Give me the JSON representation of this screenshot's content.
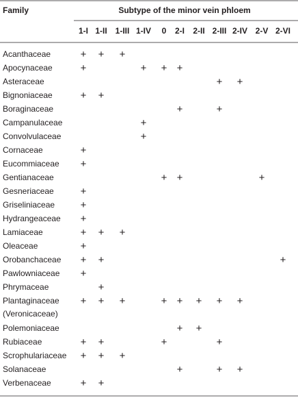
{
  "table": {
    "header": {
      "family": "Family",
      "span": "Subtype of the minor vein phloem",
      "columns": [
        "1-I",
        "1-II",
        "1-III",
        "1-IV",
        "0",
        "2-I",
        "2-II",
        "2-III",
        "2-IV",
        "2-V",
        "2-VI"
      ]
    },
    "rows": [
      {
        "family": "Acanthaceae",
        "cells": [
          "+",
          "+",
          "+",
          null,
          null,
          null,
          null,
          null,
          null,
          null,
          null
        ]
      },
      {
        "family": "Apocynaceae",
        "cells": [
          "+",
          null,
          null,
          "+",
          "+",
          "+",
          null,
          null,
          null,
          null,
          null
        ]
      },
      {
        "family": "Asteraceae",
        "cells": [
          null,
          null,
          null,
          null,
          null,
          null,
          null,
          "+",
          "+",
          null,
          null
        ]
      },
      {
        "family": "Bignoniaceae",
        "cells": [
          "+",
          "+",
          null,
          null,
          null,
          null,
          null,
          null,
          null,
          null,
          null
        ]
      },
      {
        "family": "Boraginaceae",
        "cells": [
          null,
          null,
          null,
          null,
          null,
          "+",
          null,
          "+",
          null,
          null,
          null
        ]
      },
      {
        "family": "Campanulaceae",
        "cells": [
          null,
          null,
          null,
          "+",
          null,
          null,
          null,
          null,
          null,
          null,
          null
        ]
      },
      {
        "family": "Convolvulaceae",
        "cells": [
          null,
          null,
          null,
          "+",
          null,
          null,
          null,
          null,
          null,
          null,
          null
        ]
      },
      {
        "family": "Cornaceae",
        "cells": [
          "+",
          null,
          null,
          null,
          null,
          null,
          null,
          null,
          null,
          null,
          null
        ]
      },
      {
        "family": "Eucommiaceae",
        "cells": [
          "+",
          null,
          null,
          null,
          null,
          null,
          null,
          null,
          null,
          null,
          null
        ]
      },
      {
        "family": "Gentianaceae",
        "cells": [
          null,
          null,
          null,
          null,
          "+",
          "+",
          null,
          null,
          null,
          "+",
          null
        ]
      },
      {
        "family": "Gesneriaceae",
        "cells": [
          "+",
          null,
          null,
          null,
          null,
          null,
          null,
          null,
          null,
          null,
          null
        ]
      },
      {
        "family": "Griseliniaceae",
        "cells": [
          "+",
          null,
          null,
          null,
          null,
          null,
          null,
          null,
          null,
          null,
          null
        ]
      },
      {
        "family": "Hydrangeaceae",
        "cells": [
          "+",
          null,
          null,
          null,
          null,
          null,
          null,
          null,
          null,
          null,
          null
        ]
      },
      {
        "family": "Lamiaceae",
        "cells": [
          "+",
          "+",
          "+",
          null,
          null,
          null,
          null,
          null,
          null,
          null,
          null
        ]
      },
      {
        "family": "Oleaceae",
        "cells": [
          "+",
          null,
          null,
          null,
          null,
          null,
          null,
          null,
          null,
          null,
          null
        ]
      },
      {
        "family": "Orobanchaceae",
        "cells": [
          "+",
          "+",
          null,
          null,
          null,
          null,
          null,
          null,
          null,
          null,
          "+"
        ]
      },
      {
        "family": "Pawlowniaceae",
        "cells": [
          "+",
          null,
          null,
          null,
          null,
          null,
          null,
          null,
          null,
          null,
          null
        ]
      },
      {
        "family": "Phrymaceae",
        "cells": [
          null,
          "+",
          null,
          null,
          null,
          null,
          null,
          null,
          null,
          null,
          null
        ]
      },
      {
        "family": [
          "Plantaginaceae",
          "(Veronicaceae)"
        ],
        "cells": [
          "+",
          "+",
          "+",
          null,
          "+",
          "+",
          "+",
          "+",
          "+",
          null,
          null
        ]
      },
      {
        "family": "Polemoniaceae",
        "cells": [
          null,
          null,
          null,
          null,
          null,
          "+",
          "+",
          null,
          null,
          null,
          null
        ]
      },
      {
        "family": "Rubiaceae",
        "cells": [
          "+",
          "+",
          null,
          null,
          "+",
          null,
          null,
          "+",
          null,
          null,
          null
        ]
      },
      {
        "family": "Scrophulariaceae",
        "cells": [
          "+",
          "+",
          "+",
          null,
          null,
          null,
          null,
          null,
          null,
          null,
          null
        ]
      },
      {
        "family": "Solanaceae",
        "cells": [
          null,
          null,
          null,
          null,
          null,
          "+",
          null,
          "+",
          "+",
          null,
          null
        ]
      },
      {
        "family": "Verbenaceae",
        "cells": [
          "+",
          "+",
          null,
          null,
          null,
          null,
          null,
          null,
          null,
          null,
          null
        ]
      }
    ]
  }
}
